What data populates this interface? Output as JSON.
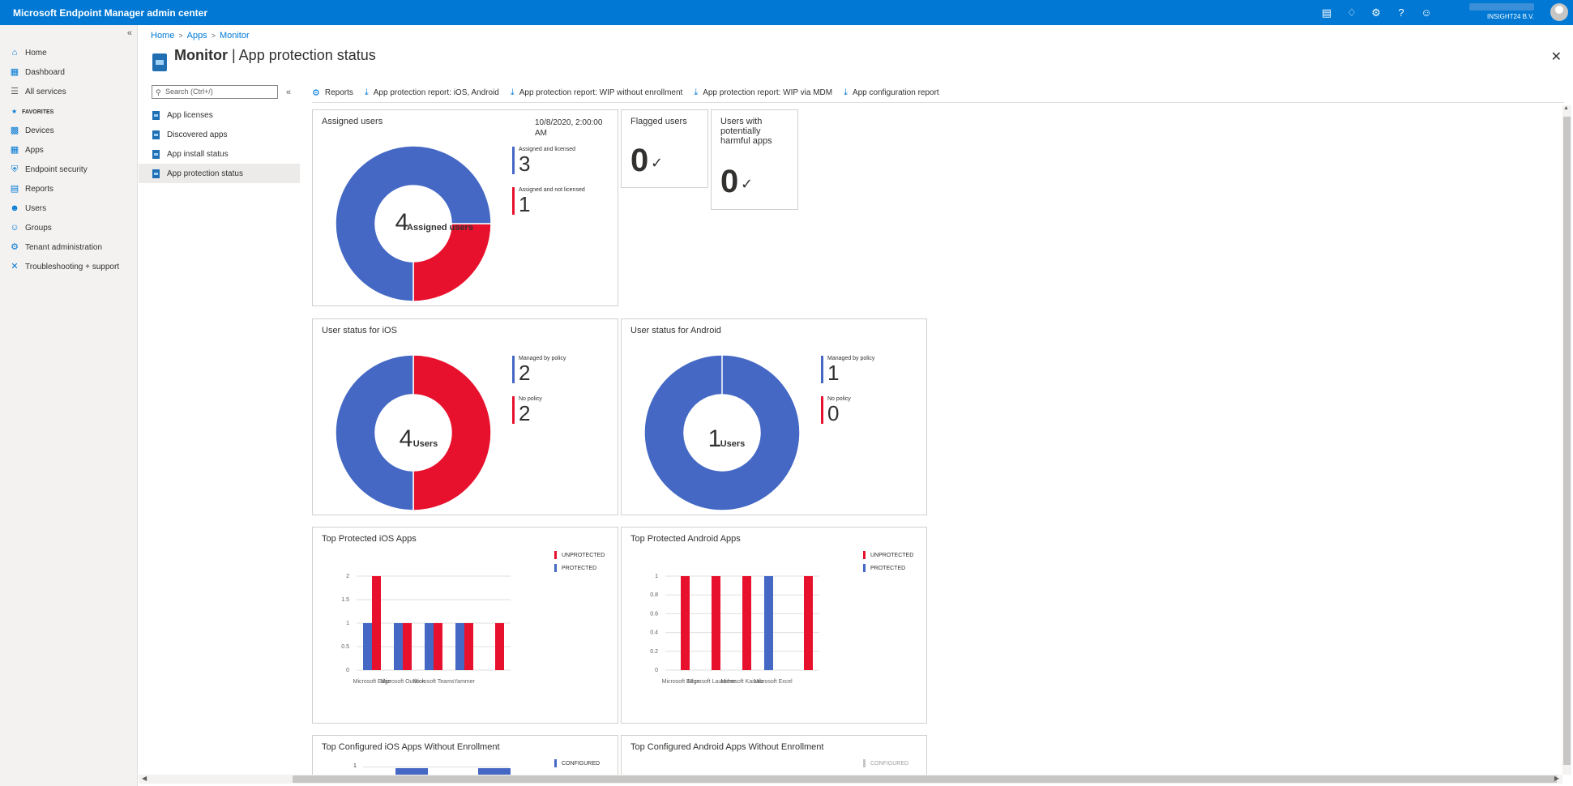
{
  "app": {
    "title": "Microsoft Endpoint Manager admin center",
    "tenant": "INSIGHT24 B.V."
  },
  "topbar_icons": [
    "feedback-icon",
    "bell-icon",
    "gear-icon",
    "help-icon",
    "smiley-icon"
  ],
  "leftnav": {
    "items": [
      {
        "label": "Home",
        "icon": "home-icon"
      },
      {
        "label": "Dashboard",
        "icon": "dashboard-icon"
      },
      {
        "label": "All services",
        "icon": "list-icon"
      }
    ],
    "favorites_label": "FAVORITES",
    "favorites": [
      {
        "label": "Devices",
        "icon": "devices-icon"
      },
      {
        "label": "Apps",
        "icon": "apps-icon"
      },
      {
        "label": "Endpoint security",
        "icon": "shield-icon"
      },
      {
        "label": "Reports",
        "icon": "reports-icon"
      },
      {
        "label": "Users",
        "icon": "user-icon"
      },
      {
        "label": "Groups",
        "icon": "groups-icon"
      },
      {
        "label": "Tenant administration",
        "icon": "tenant-icon"
      },
      {
        "label": "Troubleshooting + support",
        "icon": "tools-icon"
      }
    ]
  },
  "breadcrumb": [
    "Home",
    "Apps",
    "Monitor"
  ],
  "page": {
    "title_bold": "Monitor",
    "title_sep": " | ",
    "title_rest": "App protection status"
  },
  "submenu": {
    "search_placeholder": "Search (Ctrl+/)",
    "items": [
      "App licenses",
      "Discovered apps",
      "App install status",
      "App protection status"
    ],
    "active": "App protection status"
  },
  "toolbar": [
    {
      "label": "Reports",
      "icon": "gear-icon"
    },
    {
      "label": "App protection report: iOS, Android",
      "icon": "download-icon"
    },
    {
      "label": "App protection report: WIP without enrollment",
      "icon": "download-icon"
    },
    {
      "label": "App protection report: WIP via MDM",
      "icon": "download-icon"
    },
    {
      "label": "App configuration report",
      "icon": "download-icon"
    }
  ],
  "tiles": {
    "assigned": {
      "title": "Assigned users",
      "date_line1": "10/8/2020, 2:00:00",
      "date_line2": "AM",
      "center_value": "4",
      "center_label": "Assigned users",
      "legend": [
        {
          "label": "Assigned and licensed",
          "value": "3",
          "color": "#4468c4"
        },
        {
          "label": "Assigned and not licensed",
          "value": "1",
          "color": "#e8112d"
        }
      ]
    },
    "flagged": {
      "title": "Flagged users",
      "value": "0"
    },
    "harmful": {
      "title": "Users with potentially harmful apps",
      "value": "0"
    },
    "ios_status": {
      "title": "User status for iOS",
      "center_value": "4",
      "center_label": "Users",
      "legend": [
        {
          "label": "Managed by policy",
          "value": "2",
          "color": "#4468c4"
        },
        {
          "label": "No policy",
          "value": "2",
          "color": "#e8112d"
        }
      ]
    },
    "android_status": {
      "title": "User status for Android",
      "center_value": "1",
      "center_label": "Users",
      "legend": [
        {
          "label": "Managed by policy",
          "value": "1",
          "color": "#4468c4"
        },
        {
          "label": "No policy",
          "value": "0",
          "color": "#e8112d"
        }
      ]
    },
    "top_ios": {
      "title": "Top Protected iOS Apps",
      "legend": [
        {
          "label": "UNPROTECTED",
          "color": "#e8112d"
        },
        {
          "label": "PROTECTED",
          "color": "#4468c4"
        }
      ]
    },
    "top_android": {
      "title": "Top Protected Android Apps",
      "legend": [
        {
          "label": "UNPROTECTED",
          "color": "#e8112d"
        },
        {
          "label": "PROTECTED",
          "color": "#4468c4"
        }
      ]
    },
    "config_ios": {
      "title": "Top Configured iOS Apps Without Enrollment",
      "legend": [
        {
          "label": "CONFIGURED",
          "color": "#4468c4"
        }
      ]
    },
    "config_android": {
      "title": "Top Configured Android Apps Without Enrollment",
      "legend": [
        {
          "label": "CONFIGURED",
          "color": "#c8c6c4"
        }
      ]
    }
  },
  "chart_data": [
    {
      "type": "pie",
      "categories": [
        "Assigned and licensed",
        "Assigned and not licensed"
      ],
      "values": [
        3,
        1
      ],
      "colors": [
        "#4468c4",
        "#e8112d"
      ]
    },
    {
      "type": "pie",
      "categories": [
        "Managed by policy",
        "No policy"
      ],
      "values": [
        2,
        2
      ],
      "colors": [
        "#4468c4",
        "#e8112d"
      ]
    },
    {
      "type": "pie",
      "categories": [
        "Managed by policy",
        "No policy"
      ],
      "values": [
        1,
        0
      ],
      "colors": [
        "#4468c4",
        "#e8112d"
      ]
    },
    {
      "type": "bar",
      "title": "Top Protected iOS Apps",
      "categories": [
        "Microsoft Edge",
        "Microsoft Outlook",
        "Microsoft Teams",
        "Yammer",
        ""
      ],
      "category_labels": [
        "Microsoft Edge",
        "Microsoft Outlook",
        "Microsoft Teams",
        "Yammer"
      ],
      "series": [
        {
          "name": "PROTECTED",
          "color": "#4468c4",
          "values": [
            1,
            1,
            1,
            1,
            0
          ]
        },
        {
          "name": "UNPROTECTED",
          "color": "#e8112d",
          "values": [
            2,
            1,
            1,
            1,
            1
          ]
        }
      ],
      "ylim": [
        0,
        2
      ],
      "yticks": [
        "0",
        "0.5",
        "1",
        "1.5",
        "2"
      ]
    },
    {
      "type": "bar",
      "title": "Top Protected Android Apps",
      "categories": [
        "Microsoft Edge",
        "Microsoft Launcher",
        "Microsoft Kaizala",
        "Microsoft Excel",
        ""
      ],
      "category_labels": [
        "Microsoft Edge",
        "Microsoft Launcher",
        "Microsoft Kaizala",
        "Microsoft Excel"
      ],
      "series": [
        {
          "name": "PROTECTED",
          "color": "#4468c4",
          "values": [
            0,
            0,
            0,
            1,
            0
          ]
        },
        {
          "name": "UNPROTECTED",
          "color": "#e8112d",
          "values": [
            1,
            1,
            1,
            0,
            1
          ]
        }
      ],
      "ylim": [
        0,
        1
      ],
      "yticks": [
        "0",
        "0.2",
        "0.4",
        "0.6",
        "0.8",
        "1"
      ]
    }
  ]
}
